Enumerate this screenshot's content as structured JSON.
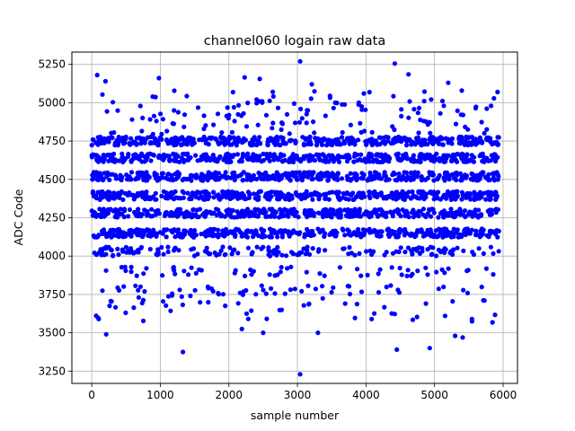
{
  "chart_data": {
    "type": "scatter",
    "title": "channel060 logain raw data",
    "xlabel": "sample number",
    "ylabel": "ADC Code",
    "xlim": [
      -290,
      6210
    ],
    "ylim": [
      3170,
      5330
    ],
    "xticks": [
      0,
      1000,
      2000,
      3000,
      4000,
      5000,
      6000
    ],
    "yticks": [
      3250,
      3500,
      3750,
      4000,
      4250,
      4500,
      4750,
      5000,
      5250
    ],
    "grid": true,
    "marker_color": "#0000ff",
    "sample_count": 5940,
    "dominant_levels": [
      4150,
      4280,
      4395,
      4520,
      4640,
      4750
    ],
    "minor_levels": [
      4030,
      3900,
      3780
    ],
    "outliers": [
      {
        "x": 3040,
        "y": 3230
      },
      {
        "x": 1330,
        "y": 3375
      },
      {
        "x": 210,
        "y": 3490
      },
      {
        "x": 3040,
        "y": 5270
      },
      {
        "x": 4420,
        "y": 5255
      },
      {
        "x": 4620,
        "y": 5185
      },
      {
        "x": 80,
        "y": 5180
      },
      {
        "x": 2230,
        "y": 5165
      },
      {
        "x": 980,
        "y": 5160
      },
      {
        "x": 2450,
        "y": 5155
      },
      {
        "x": 5200,
        "y": 5130
      },
      {
        "x": 3210,
        "y": 5120
      },
      {
        "x": 200,
        "y": 5140
      },
      {
        "x": 4450,
        "y": 3390
      },
      {
        "x": 4930,
        "y": 3400
      },
      {
        "x": 2190,
        "y": 3525
      },
      {
        "x": 2500,
        "y": 3500
      },
      {
        "x": 3300,
        "y": 3500
      },
      {
        "x": 5410,
        "y": 3470
      },
      {
        "x": 5300,
        "y": 3480
      }
    ]
  }
}
